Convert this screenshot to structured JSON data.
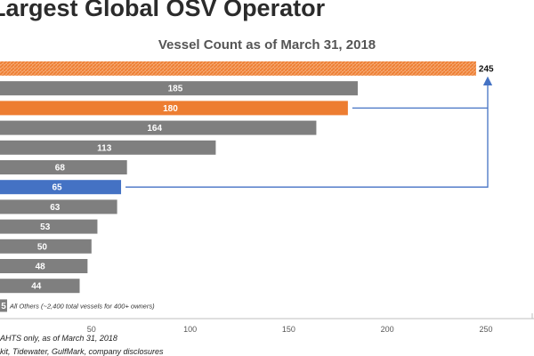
{
  "header": {
    "title": "Largest Global OSV Operator",
    "subtitle": "Vessel Count as of March 31, 2018"
  },
  "colors": {
    "gray": "#7f7f7f",
    "orange": "#ed7d31",
    "blue": "#4472c4",
    "highlight_pattern": "#ed7d31"
  },
  "chart_data": {
    "type": "bar",
    "orientation": "horizontal",
    "title": "Vessel Count as of March 31, 2018",
    "xlabel": "",
    "ylabel": "",
    "xlim": [
      0,
      250
    ],
    "xticks": [
      50,
      100,
      150,
      200,
      250
    ],
    "values": [
      245,
      185,
      180,
      164,
      113,
      68,
      65,
      63,
      53,
      50,
      48,
      44,
      5
    ],
    "bar_labels": [
      "245",
      "185",
      "180",
      "164",
      "113",
      "68",
      "65",
      "63",
      "53",
      "50",
      "48",
      "44",
      "5"
    ],
    "bar_colors": [
      "hatched-orange",
      "gray",
      "orange",
      "gray",
      "gray",
      "gray",
      "blue",
      "gray",
      "gray",
      "gray",
      "gray",
      "gray",
      "gray"
    ],
    "annotations": [
      {
        "text": "All Others (~2,400 total vessels for 400+ owners)",
        "bar_index": 12
      },
      {
        "type": "bracket-arrow",
        "from_bar": 6,
        "via_bar": 2,
        "to_bar": 0
      }
    ]
  },
  "footnotes": {
    "line1": "AHTS only, as of March 31, 2018",
    "line2": "kit, Tidewater, GulfMark, company disclosures"
  }
}
